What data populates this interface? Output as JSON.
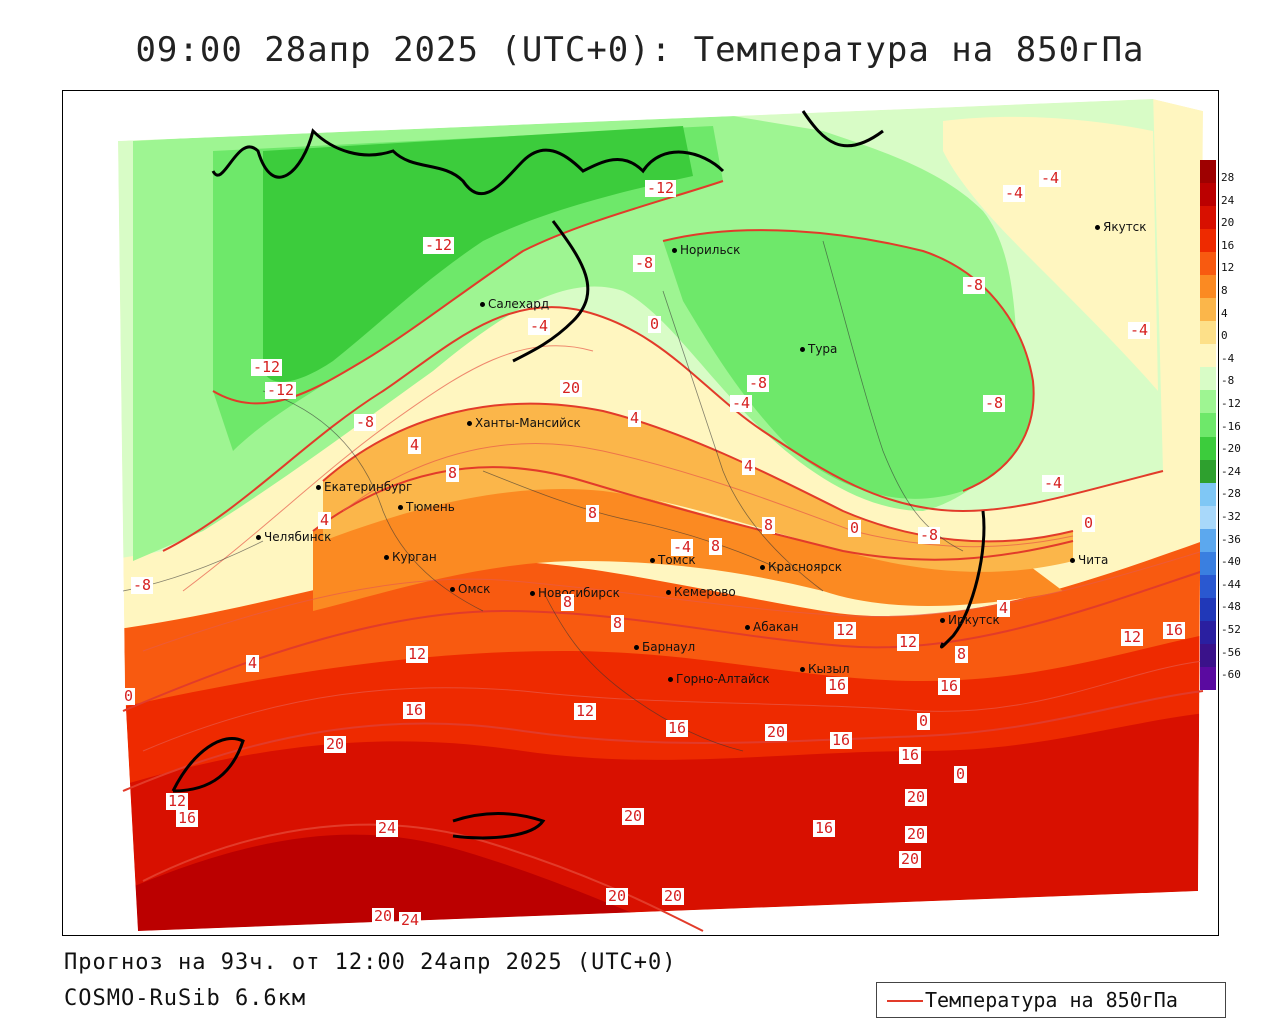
{
  "title": "09:00 28апр 2025 (UTC+0): Температура на 850гПа",
  "footer": {
    "forecast": "Прогноз на 93ч. от 12:00 24апр 2025 (UTC+0)",
    "model": "COSMO-RuSib 6.6км"
  },
  "legend": {
    "label": "Температура на 850гПа",
    "line_color": "#e23b2a"
  },
  "colorbar": {
    "labels": [
      "28",
      "24",
      "20",
      "16",
      "12",
      "8",
      "4",
      "0",
      "-4",
      "-8",
      "-12",
      "-16",
      "-20",
      "-24",
      "-28",
      "-32",
      "-36",
      "-40",
      "-44",
      "-48",
      "-52",
      "-56",
      "-60"
    ],
    "colors": [
      "#9e0000",
      "#bb0000",
      "#d81000",
      "#ee2a00",
      "#f85a10",
      "#fb8a22",
      "#fbb64a",
      "#fde089",
      "#fff6c0",
      "#d8fcc6",
      "#9ef592",
      "#6ee86a",
      "#3ccc3c",
      "#2ea02e",
      "#7fc7f5",
      "#a8d8fa",
      "#5ca8ee",
      "#3a7fe0",
      "#2a58d0",
      "#2038b8",
      "#2a1fa0",
      "#3a128a",
      "#5a0aa0"
    ]
  },
  "cities": [
    {
      "name": "Якутск"
    },
    {
      "name": "Норильск"
    },
    {
      "name": "Салехард"
    },
    {
      "name": "Тура"
    },
    {
      "name": "Ханты-Мансийск"
    },
    {
      "name": "Екатеринбург"
    },
    {
      "name": "Тюмень"
    },
    {
      "name": "Челябинск"
    },
    {
      "name": "Курган"
    },
    {
      "name": "Омск"
    },
    {
      "name": "Новосибирск"
    },
    {
      "name": "Томск"
    },
    {
      "name": "Кемерово"
    },
    {
      "name": "Красноярск"
    },
    {
      "name": "Абакан"
    },
    {
      "name": "Барнаул"
    },
    {
      "name": "Горно-Алтайск"
    },
    {
      "name": "Кызыл"
    },
    {
      "name": "Иркутск"
    },
    {
      "name": "Чита"
    }
  ],
  "isotherm_labels": [
    "-12",
    "-12",
    "-12",
    "-12",
    "-8",
    "-8",
    "-8",
    "-8",
    "-8",
    "-8",
    "-8",
    "-4",
    "-4",
    "-4",
    "-4",
    "-4",
    "-4",
    "0",
    "0",
    "0",
    "0",
    "0",
    "0",
    "4",
    "4",
    "4",
    "4",
    "4",
    "4",
    "8",
    "8",
    "8",
    "8",
    "8",
    "8",
    "8",
    "12",
    "12",
    "12",
    "12",
    "12",
    "12",
    "16",
    "16",
    "16",
    "16",
    "16",
    "16",
    "16",
    "16",
    "16",
    "20",
    "20",
    "20",
    "20",
    "20",
    "20",
    "20",
    "20",
    "20",
    "20",
    "24",
    "24",
    "-4"
  ]
}
